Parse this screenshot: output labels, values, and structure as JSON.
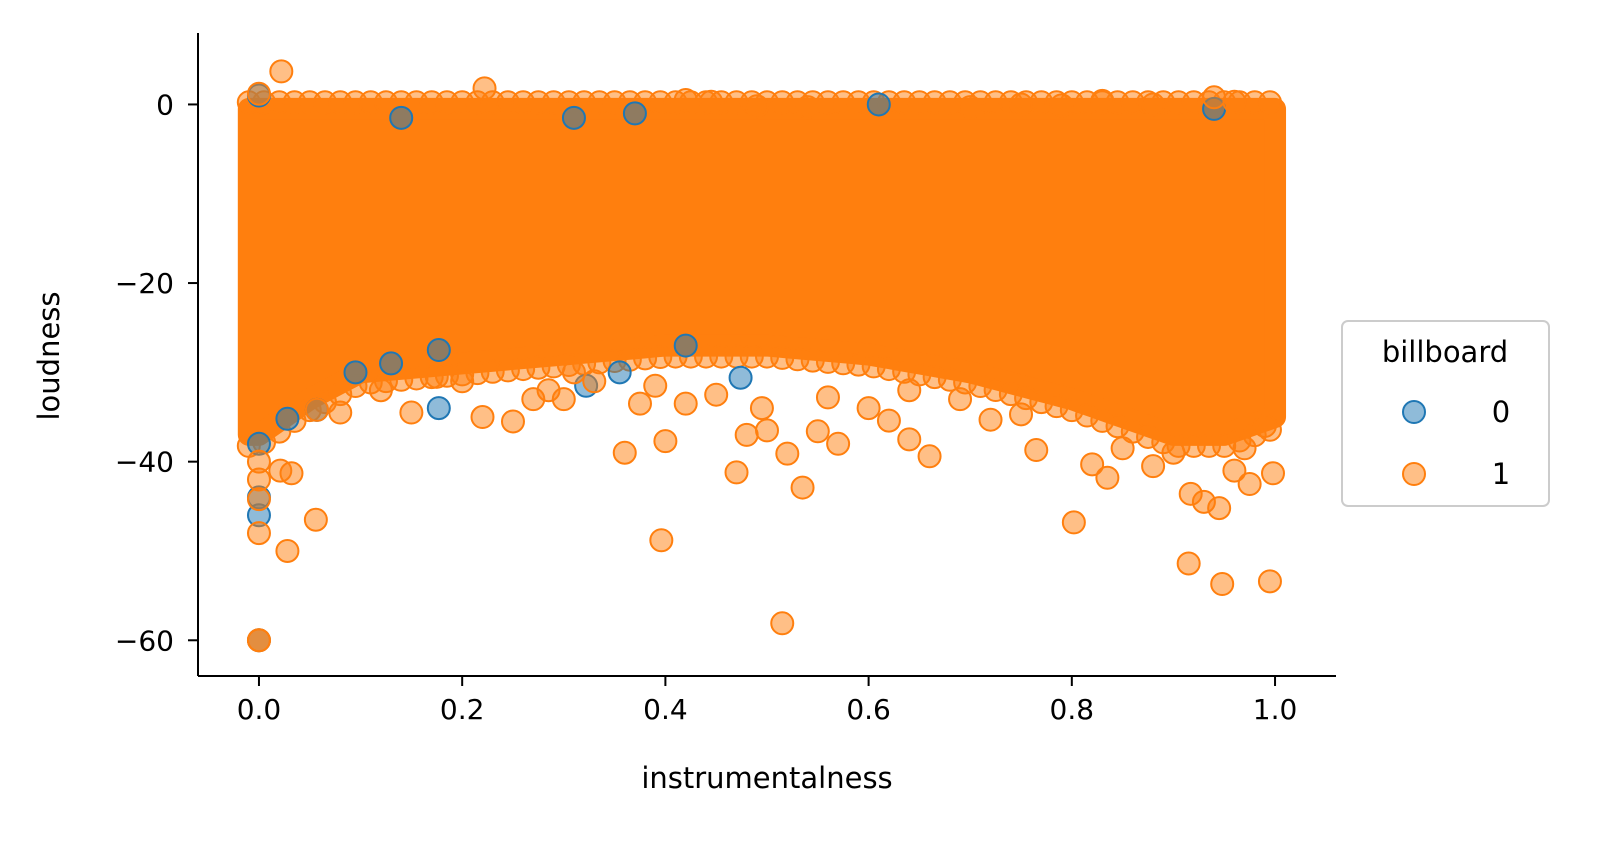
{
  "chart_data": {
    "type": "scatter",
    "title": "",
    "xlabel": "instrumentalness",
    "ylabel": "loudness",
    "xlim": [
      -0.06,
      1.06
    ],
    "ylim": [
      -64,
      8
    ],
    "xticks": [
      0.0,
      0.2,
      0.4,
      0.6,
      0.8,
      1.0
    ],
    "xtick_labels": [
      "0.0",
      "0.2",
      "0.4",
      "0.6",
      "0.8",
      "1.0"
    ],
    "yticks": [
      0,
      -20,
      -40,
      -60
    ],
    "ytick_labels": [
      "0",
      "−20",
      "−40",
      "−60"
    ],
    "legend": {
      "title": "billboard",
      "position": "center-right-outside",
      "entries": [
        {
          "label": "0",
          "color": "#1f77b4"
        },
        {
          "label": "1",
          "color": "#ff7f0e"
        }
      ]
    },
    "point_alpha": 0.5,
    "dense_band": {
      "note": "Dense overlapping cloud of points for both series covering x 0-1, loudness approx -37 to 0",
      "x_range": [
        -0.01,
        1.0
      ],
      "y_top": -0.5,
      "y_bottom_profile": [
        [
          0.0,
          -37
        ],
        [
          0.05,
          -33
        ],
        [
          0.1,
          -30
        ],
        [
          0.2,
          -29
        ],
        [
          0.3,
          -28
        ],
        [
          0.4,
          -27
        ],
        [
          0.5,
          -27
        ],
        [
          0.6,
          -28
        ],
        [
          0.7,
          -30
        ],
        [
          0.8,
          -33
        ],
        [
          0.9,
          -37
        ],
        [
          0.95,
          -37
        ],
        [
          1.0,
          -35
        ]
      ]
    },
    "series": [
      {
        "name": "0",
        "color": "#1f77b4",
        "points": [
          [
            0.0,
            1.0
          ],
          [
            0.14,
            -1.5
          ],
          [
            0.31,
            -1.5
          ],
          [
            0.37,
            -1.0
          ],
          [
            0.61,
            0.0
          ],
          [
            0.94,
            -0.5
          ],
          [
            0.0,
            -38
          ],
          [
            0.0,
            -44
          ],
          [
            0.0,
            -46
          ],
          [
            0.0,
            -60
          ],
          [
            0.028,
            -35.2
          ],
          [
            0.057,
            -34.2
          ],
          [
            0.095,
            -30
          ],
          [
            0.177,
            -34.0
          ],
          [
            0.177,
            -27.5
          ],
          [
            0.322,
            -31.5
          ],
          [
            0.355,
            -30.0
          ],
          [
            0.474,
            -30.6
          ],
          [
            0.13,
            -29
          ],
          [
            0.42,
            -27
          ]
        ]
      },
      {
        "name": "1",
        "color": "#ff7f0e",
        "points": [
          [
            0.022,
            3.7
          ],
          [
            0.222,
            1.8
          ],
          [
            0.0,
            1.2
          ],
          [
            0.42,
            0.5
          ],
          [
            0.445,
            0.3
          ],
          [
            0.49,
            -0.2
          ],
          [
            0.83,
            0.4
          ],
          [
            0.88,
            0.0
          ],
          [
            0.94,
            0.8
          ],
          [
            0.96,
            0.3
          ],
          [
            0.7,
            -0.3
          ],
          [
            0.75,
            0.0
          ],
          [
            0.79,
            -0.1
          ],
          [
            0.54,
            -0.3
          ],
          [
            0.0,
            -40
          ],
          [
            0.0,
            -42
          ],
          [
            0.0,
            -44.2
          ],
          [
            0.0,
            -48
          ],
          [
            0.0,
            -60
          ],
          [
            0.0,
            -60
          ],
          [
            0.021,
            -41
          ],
          [
            0.032,
            -41.3
          ],
          [
            0.028,
            -50
          ],
          [
            0.056,
            -46.5
          ],
          [
            0.057,
            -34.2
          ],
          [
            0.08,
            -34.5
          ],
          [
            0.12,
            -32
          ],
          [
            0.15,
            -34.5
          ],
          [
            0.175,
            -30.5
          ],
          [
            0.2,
            -31
          ],
          [
            0.22,
            -35
          ],
          [
            0.25,
            -35.5
          ],
          [
            0.27,
            -33
          ],
          [
            0.285,
            -32
          ],
          [
            0.31,
            -30
          ],
          [
            0.33,
            -31
          ],
          [
            0.36,
            -39
          ],
          [
            0.375,
            -33.5
          ],
          [
            0.39,
            -31.5
          ],
          [
            0.4,
            -37.7
          ],
          [
            0.396,
            -48.8
          ],
          [
            0.42,
            -33.5
          ],
          [
            0.45,
            -32.5
          ],
          [
            0.47,
            -41.2
          ],
          [
            0.48,
            -37
          ],
          [
            0.495,
            -34
          ],
          [
            0.5,
            -36.5
          ],
          [
            0.52,
            -39.1
          ],
          [
            0.535,
            -42.9
          ],
          [
            0.55,
            -36.6
          ],
          [
            0.56,
            -32.8
          ],
          [
            0.57,
            -38
          ],
          [
            0.6,
            -34
          ],
          [
            0.62,
            -35.4
          ],
          [
            0.64,
            -37.5
          ],
          [
            0.66,
            -39.4
          ],
          [
            0.69,
            -33
          ],
          [
            0.72,
            -35.3
          ],
          [
            0.75,
            -34.7
          ],
          [
            0.765,
            -38.7
          ],
          [
            0.802,
            -46.8
          ],
          [
            0.82,
            -40.3
          ],
          [
            0.835,
            -41.8
          ],
          [
            0.85,
            -38.5
          ],
          [
            0.88,
            -40.5
          ],
          [
            0.9,
            -39
          ],
          [
            0.915,
            -51.4
          ],
          [
            0.917,
            -43.6
          ],
          [
            0.93,
            -44.5
          ],
          [
            0.945,
            -45.2
          ],
          [
            0.948,
            -53.7
          ],
          [
            0.96,
            -41
          ],
          [
            0.975,
            -42.5
          ],
          [
            0.995,
            -53.4
          ],
          [
            0.998,
            -41.3
          ],
          [
            0.515,
            -58.1
          ],
          [
            0.99,
            -36
          ],
          [
            0.97,
            -38.5
          ],
          [
            0.64,
            -32
          ],
          [
            0.3,
            -33
          ]
        ]
      }
    ]
  }
}
